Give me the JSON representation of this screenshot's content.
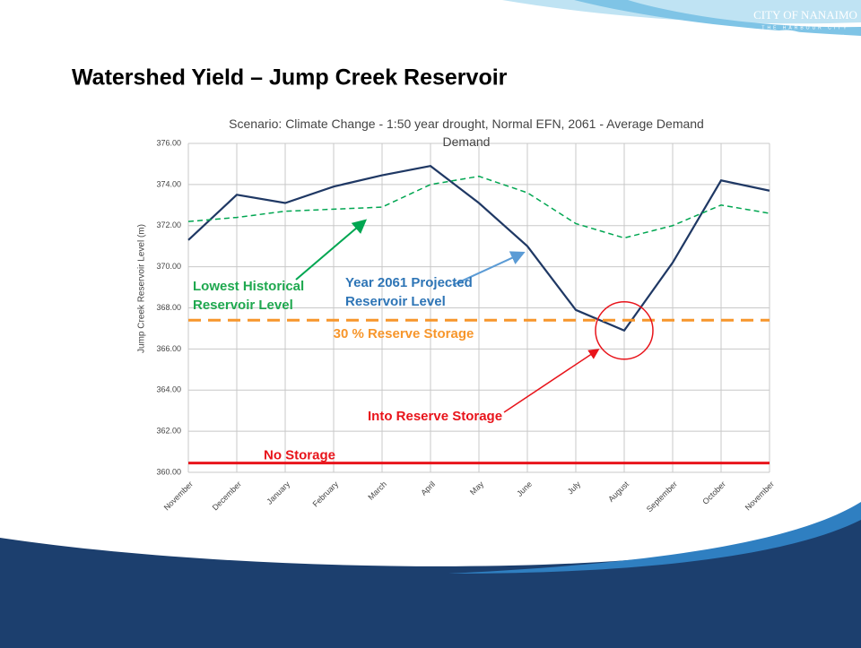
{
  "slide": {
    "heading": "Watershed Yield – Jump Creek Reservoir",
    "logo": "CITY OF NANAIMO",
    "logo_tagline": "THE HARBOUR CITY"
  },
  "chart_data": {
    "type": "line",
    "title": "Scenario: Climate Change - 1:50 year drought, Normal EFN, 2061 - Average Demand Demand",
    "y_label": "Jump Creek Reservoir Level (m)",
    "categories": [
      "November",
      "December",
      "January",
      "February",
      "March",
      "April",
      "May",
      "June",
      "July",
      "August",
      "September",
      "October",
      "November"
    ],
    "ylim": [
      360,
      376
    ],
    "yticks": [
      {
        "value": 360,
        "label": "360.00"
      },
      {
        "value": 362,
        "label": "362.00"
      },
      {
        "value": 364,
        "label": "364.00"
      },
      {
        "value": 366,
        "label": "366.00"
      },
      {
        "value": 368,
        "label": "368.00"
      },
      {
        "value": 370,
        "label": "370.00"
      },
      {
        "value": 372,
        "label": "372.00"
      },
      {
        "value": 374,
        "label": "374.00"
      },
      {
        "value": 376,
        "label": "376.00"
      }
    ],
    "grid": true,
    "series": [
      {
        "color": "#1f3864",
        "dash": false,
        "values": [
          371.3,
          373.5,
          373.1,
          373.9,
          374.45,
          374.9,
          373.1,
          371.0,
          367.9,
          366.9,
          370.2,
          374.2,
          373.7
        ]
      },
      {
        "color": "#00a651",
        "dash": true,
        "values": [
          372.2,
          372.4,
          372.7,
          372.8,
          372.9,
          374.0,
          374.4,
          373.6,
          372.1,
          371.4,
          372.0,
          373.0,
          372.6
        ]
      }
    ],
    "hlines": [
      {
        "label": "30 % Reserve Storage",
        "value": 367.4,
        "color": "#f7962b"
      },
      {
        "label": "No Storage",
        "value": 360.45,
        "color": "#e8141b"
      }
    ],
    "annotations": [
      {
        "text": "Lowest Historical Reservoir Level",
        "color": "#1fa84f"
      },
      {
        "text": "Year 2061 Projected Reservoir Level",
        "color": "#2e75b6"
      },
      {
        "text": "Into Reserve Storage",
        "color": "#e8141b"
      }
    ]
  }
}
